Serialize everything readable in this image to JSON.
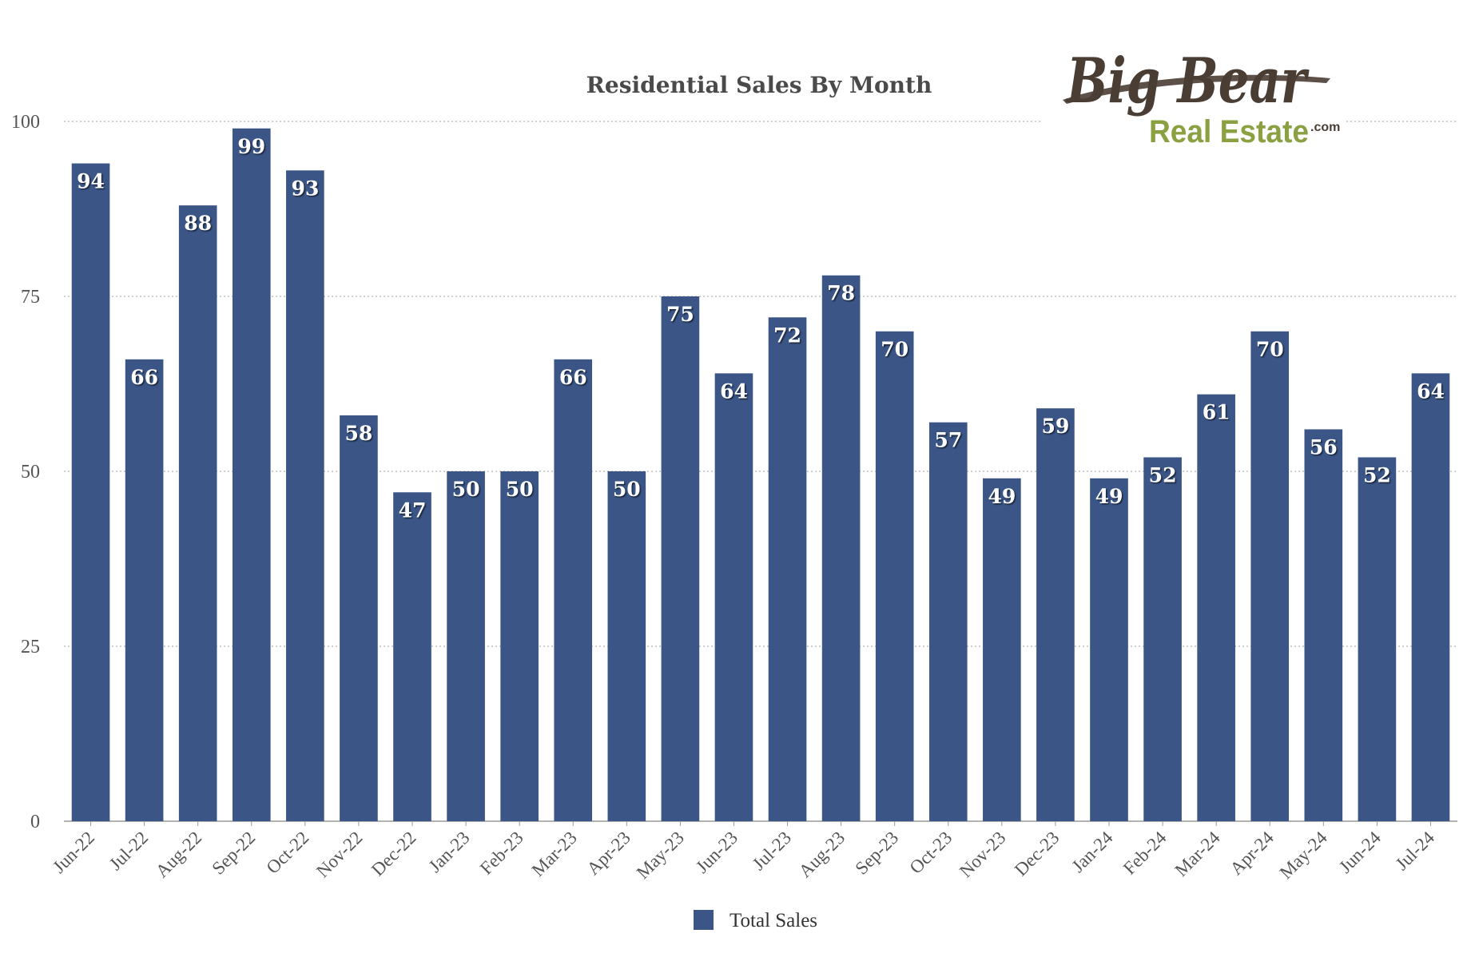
{
  "logo": {
    "script_text": "Big Bear",
    "sub_text": "Real Estate",
    "suffix_text": ".com",
    "script_color": "#4a3d34",
    "sub_color": "#8aa041"
  },
  "chart_data": {
    "type": "bar",
    "title": "Residential Sales By Month",
    "xlabel": "",
    "ylabel": "",
    "ylim": [
      0,
      100
    ],
    "yticks": [
      0,
      25,
      50,
      75,
      100
    ],
    "grid": true,
    "legend_position": "bottom",
    "bar_color": "#3a5586",
    "categories": [
      "Jun-22",
      "Jul-22",
      "Aug-22",
      "Sep-22",
      "Oct-22",
      "Nov-22",
      "Dec-22",
      "Jan-23",
      "Feb-23",
      "Mar-23",
      "Apr-23",
      "May-23",
      "Jun-23",
      "Jul-23",
      "Aug-23",
      "Sep-23",
      "Oct-23",
      "Nov-23",
      "Dec-23",
      "Jan-24",
      "Feb-24",
      "Mar-24",
      "Apr-24",
      "May-24",
      "Jun-24",
      "Jul-24"
    ],
    "series": [
      {
        "name": "Total Sales",
        "values": [
          94,
          66,
          88,
          99,
          93,
          58,
          47,
          50,
          50,
          66,
          50,
          75,
          64,
          72,
          78,
          70,
          57,
          49,
          59,
          49,
          52,
          61,
          70,
          56,
          52,
          64
        ]
      }
    ]
  }
}
